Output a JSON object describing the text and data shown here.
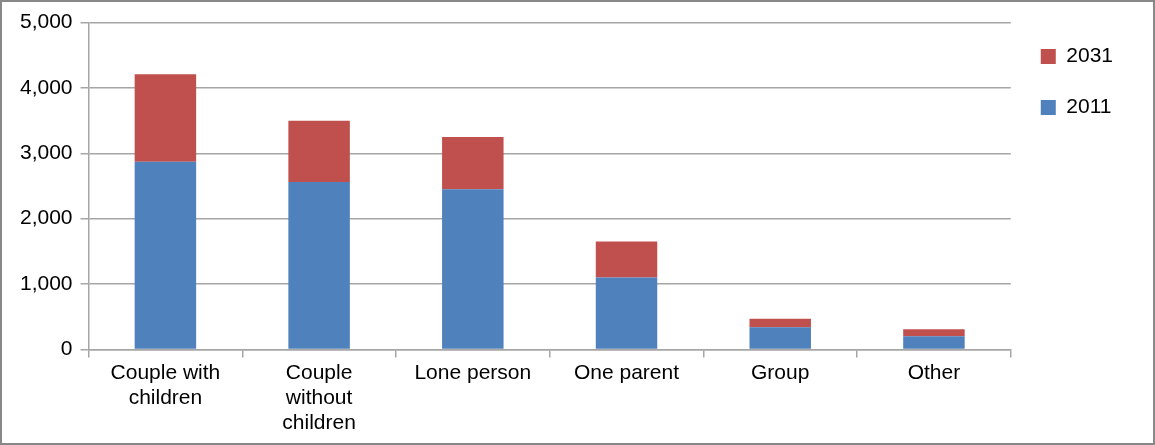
{
  "chart_data": {
    "type": "bar",
    "stacked": true,
    "categories": [
      "Couple with children",
      "Couple without children",
      "Lone person",
      "One parent",
      "Group",
      "Other"
    ],
    "series": [
      {
        "name": "2011",
        "color": "#4f81bd",
        "values": [
          2870,
          2560,
          2450,
          1100,
          340,
          200
        ]
      },
      {
        "name": "2031",
        "color": "#c0504d",
        "values": [
          1340,
          940,
          800,
          550,
          130,
          110
        ]
      }
    ],
    "ylim": [
      0,
      5000
    ],
    "yticks": [
      {
        "value": 0,
        "label": "0"
      },
      {
        "value": 1000,
        "label": "1,000"
      },
      {
        "value": 2000,
        "label": "2,000"
      },
      {
        "value": 3000,
        "label": "3,000"
      },
      {
        "value": 4000,
        "label": "4,000"
      },
      {
        "value": 5000,
        "label": "5,000"
      }
    ],
    "grid": "y",
    "legend": "right"
  }
}
